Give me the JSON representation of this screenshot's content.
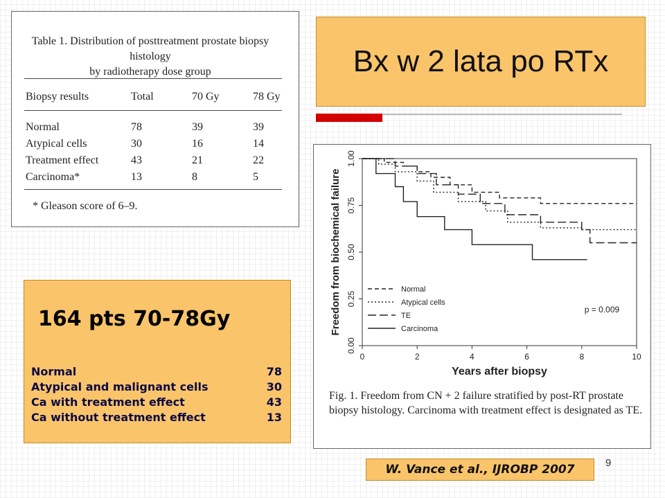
{
  "slide": {
    "title": "Bx w 2 lata po RTx",
    "page_number": "9",
    "citation": "W. Vance et al., IJROBP 2007",
    "colors": {
      "box_fill": "#f9c46a",
      "accent_red": "#d40000"
    }
  },
  "table": {
    "caption_line1": "Table 1. Distribution of posttreatment prostate biopsy histology",
    "caption_line2": "by radiotherapy dose group",
    "headers": [
      "Biopsy results",
      "Total",
      "70 Gy",
      "78 Gy"
    ],
    "rows": [
      [
        "Normal",
        "78",
        "39",
        "39"
      ],
      [
        "Atypical cells",
        "30",
        "16",
        "14"
      ],
      [
        "Treatment effect",
        "43",
        "21",
        "22"
      ],
      [
        "Carcinoma*",
        "13",
        "8",
        "5"
      ]
    ],
    "footnote": "* Gleason score of 6–9."
  },
  "stats": {
    "heading": "164 pts 70-78Gy",
    "rows": [
      {
        "label": "Normal",
        "value": "78"
      },
      {
        "label": "Atypical and malignant cells",
        "value": "30"
      },
      {
        "label": "Ca with treatment effect",
        "value": "43"
      },
      {
        "label": "Ca without treatment effect",
        "value": "13"
      }
    ]
  },
  "figure": {
    "caption": "Fig. 1. Freedom from CN + 2 failure stratified by post-RT prostate biopsy histology. Carcinoma with treatment effect is designated as TE.",
    "pvalue": "p = 0.009"
  },
  "chart_data": {
    "type": "line",
    "xlabel": "Years after biopsy",
    "ylabel": "Freedom from biochemical failure",
    "xlim": [
      0,
      10
    ],
    "ylim": [
      0,
      1
    ],
    "x_ticks": [
      "0",
      "2",
      "4",
      "6",
      "8",
      "10"
    ],
    "y_ticks": [
      "0.00",
      "0.25",
      "0.50",
      "0.75",
      "1.00"
    ],
    "legend_position": "bottom-left",
    "series": [
      {
        "name": "Normal",
        "style": "dashed",
        "x": [
          0,
          0.8,
          1.5,
          2.0,
          2.5,
          3.2,
          4.0,
          5.0,
          6.5,
          10
        ],
        "y": [
          1.0,
          0.98,
          0.96,
          0.93,
          0.9,
          0.86,
          0.82,
          0.79,
          0.76,
          0.76
        ]
      },
      {
        "name": "Atypical cells",
        "style": "dotted",
        "x": [
          0,
          0.6,
          1.2,
          2.0,
          2.6,
          3.5,
          4.5,
          5.3,
          6.5,
          8.0,
          10
        ],
        "y": [
          1.0,
          0.97,
          0.93,
          0.88,
          0.82,
          0.77,
          0.72,
          0.66,
          0.63,
          0.62,
          0.62
        ]
      },
      {
        "name": "TE",
        "style": "longdash",
        "x": [
          0,
          1.2,
          2.0,
          2.7,
          3.5,
          4.3,
          5.2,
          6.5,
          8.0,
          8.3,
          10
        ],
        "y": [
          1.0,
          0.96,
          0.92,
          0.86,
          0.81,
          0.76,
          0.7,
          0.66,
          0.62,
          0.55,
          0.55
        ]
      },
      {
        "name": "Carcinoma",
        "style": "solid",
        "x": [
          0,
          0.5,
          1.2,
          1.5,
          2.0,
          3.0,
          4.0,
          6.0,
          6.2,
          8.2
        ],
        "y": [
          1.0,
          0.92,
          0.85,
          0.77,
          0.69,
          0.62,
          0.54,
          0.54,
          0.46,
          0.46
        ]
      }
    ]
  }
}
